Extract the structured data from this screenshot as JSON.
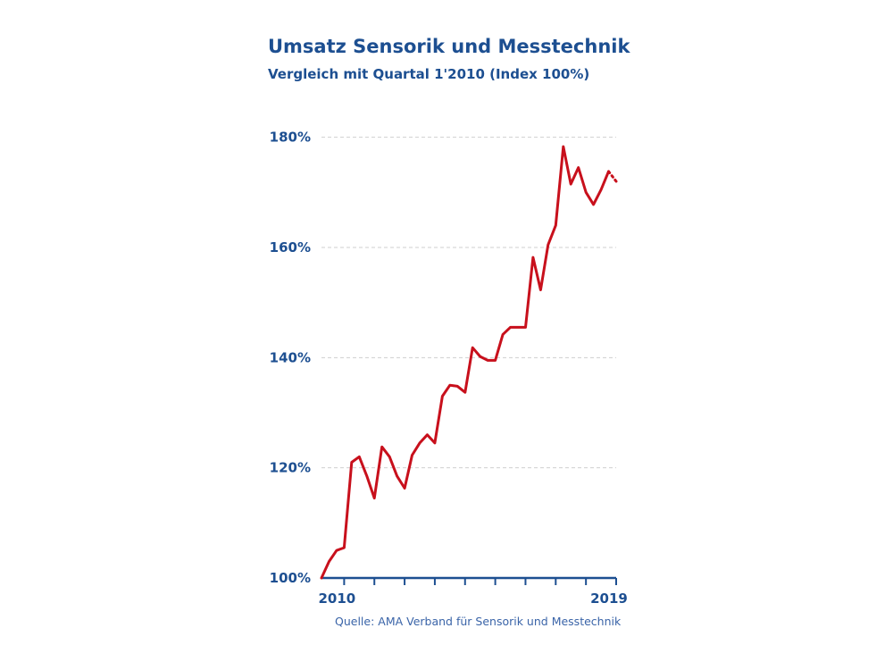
{
  "chart_data": {
    "type": "line",
    "title": "Umsatz Sensorik und Messtechnik",
    "subtitle": "Vergleich mit Quartal 1'2010 (Index 100%)",
    "source": "Quelle: AMA Verband für Sensorik und Messtechnik",
    "xlabel": "",
    "ylabel": "",
    "x_tick_labels": [
      {
        "label": "2010",
        "index": 3
      },
      {
        "label": "2019",
        "index": 39
      }
    ],
    "y_ticks": [
      100,
      120,
      140,
      160,
      180
    ],
    "y_tick_labels": [
      "100%",
      "120%",
      "140%",
      "160%",
      "180%"
    ],
    "ylim": [
      100,
      184
    ],
    "grid": true,
    "series": [
      {
        "color": "#c8101c",
        "values": [
          100,
          103,
          105,
          105.5,
          121,
          122,
          118.5,
          114.5,
          123.8,
          122,
          118.5,
          116.3,
          122.3,
          124.5,
          126,
          124.5,
          133,
          135,
          134.8,
          133.7,
          141.8,
          140.2,
          139.5,
          139.5,
          144.2,
          145.5,
          145.5,
          145.5,
          158.2,
          152.3,
          160.5,
          164,
          178.3,
          171.5,
          174.5,
          170,
          167.8,
          170.5,
          173.8
        ]
      },
      {
        "color": "#c8101c",
        "style": "dotted",
        "start_index": 38,
        "values": [
          173.8,
          172
        ]
      }
    ]
  }
}
